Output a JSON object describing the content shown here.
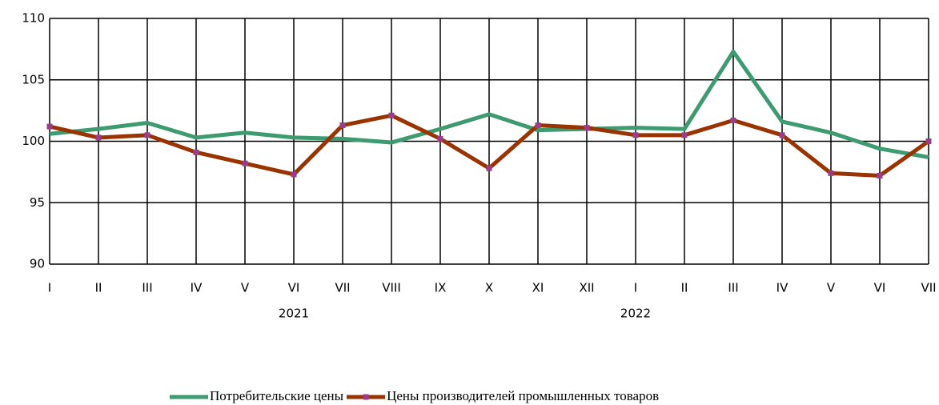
{
  "chart_data": {
    "type": "line",
    "categories": [
      "I",
      "II",
      "III",
      "IV",
      "V",
      "VI",
      "VII",
      "VIII",
      "IX",
      "X",
      "XI",
      "XII",
      "I",
      "II",
      "III",
      "IV",
      "V",
      "VI",
      "VII"
    ],
    "x_groups": [
      "2021",
      "2022"
    ],
    "series": [
      {
        "name": "Потребительские цены",
        "color": "#3d9b6f",
        "values": [
          100.6,
          101.0,
          101.5,
          100.3,
          100.7,
          100.3,
          100.2,
          99.9,
          101.0,
          102.2,
          100.9,
          101.0,
          101.1,
          101.0,
          107.3,
          101.6,
          100.7,
          99.4,
          98.7
        ]
      },
      {
        "name": "Цены производителей промышленных товаров",
        "color": "#993300",
        "marker_color": "#9b3d8a",
        "values": [
          101.2,
          100.3,
          100.5,
          99.1,
          98.2,
          97.3,
          101.3,
          102.1,
          100.2,
          97.8,
          101.3,
          101.1,
          100.5,
          100.5,
          101.7,
          100.5,
          97.4,
          97.2,
          100.0
        ]
      }
    ],
    "ylim": [
      90,
      110
    ],
    "yticks": [
      90,
      95,
      100,
      105,
      110
    ],
    "grid": true,
    "legend": "bottom"
  }
}
